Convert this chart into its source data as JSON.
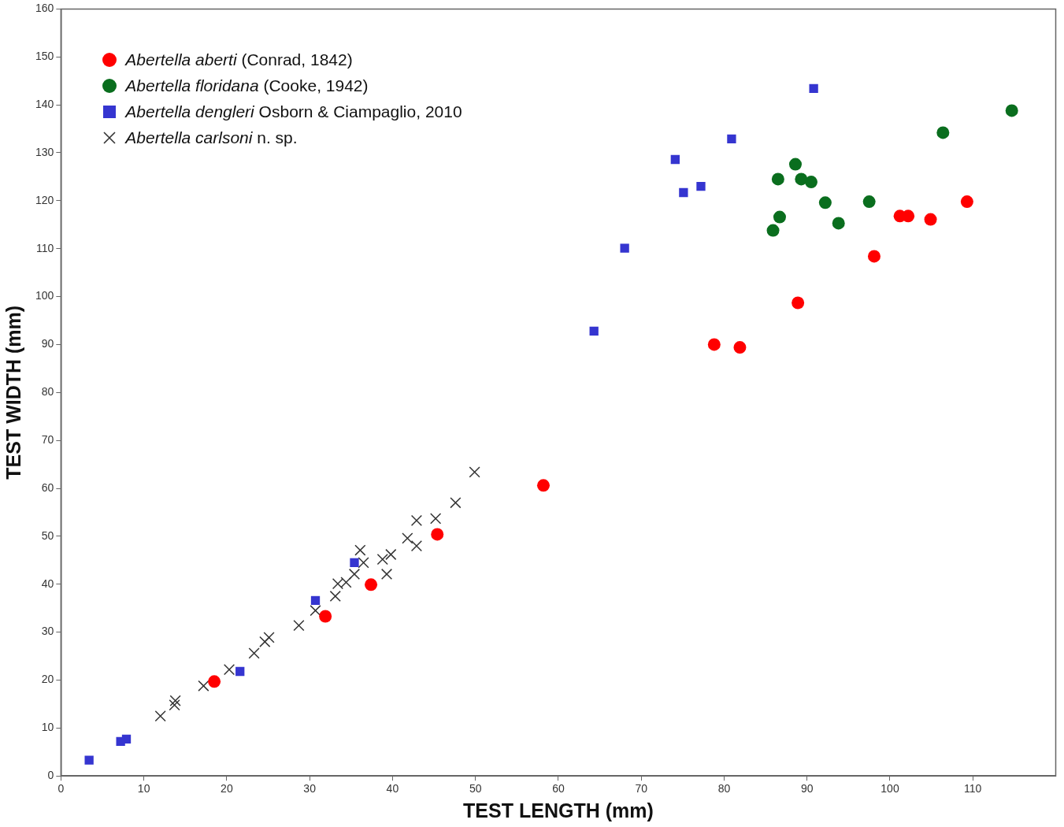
{
  "chart_data": {
    "type": "scatter",
    "xlabel": "TEST LENGTH (mm)",
    "ylabel": "TEST WIDTH (mm)",
    "xlim": [
      0,
      120
    ],
    "xticks": [
      0,
      10,
      20,
      30,
      40,
      50,
      60,
      70,
      80,
      90,
      100,
      110
    ],
    "ylim": [
      0,
      160
    ],
    "yticks": [
      0,
      10,
      20,
      30,
      40,
      50,
      60,
      70,
      80,
      90,
      100,
      110,
      120,
      130,
      140,
      150,
      160
    ],
    "grid": false,
    "legend": "top left",
    "series": [
      {
        "name": "Abertella aberti (Conrad, 1842)",
        "color": "#ff0000",
        "marker": "circle",
        "x": [
          18.5,
          31.9,
          37.4,
          45.4,
          58.2,
          78.8,
          81.9,
          88.9,
          98.1,
          101.2,
          102.2,
          104.9,
          109.3
        ],
        "values": [
          19.7,
          33.3,
          39.9,
          50.4,
          60.6,
          90.0,
          89.4,
          98.7,
          108.4,
          116.8,
          116.8,
          116.1,
          119.8
        ]
      },
      {
        "name": "Abertella floridana (Cooke, 1942)",
        "color": "#0a6e1e",
        "marker": "circle",
        "x": [
          114.7,
          106.4,
          88.6,
          86.5,
          89.3,
          90.5,
          92.2,
          97.5,
          93.8,
          86.7,
          85.9
        ],
        "values": [
          138.8,
          134.2,
          127.6,
          124.5,
          124.5,
          123.9,
          119.6,
          119.8,
          115.3,
          116.6,
          113.8
        ]
      },
      {
        "name": "Abertella dengleri Osborn & Ciampaglio, 2010",
        "color": "#3535d0",
        "marker": "square",
        "x": [
          90.8,
          80.9,
          74.1,
          77.2,
          75.1,
          68.0,
          64.3,
          35.4,
          30.7,
          21.6,
          7.9,
          7.2,
          3.4
        ],
        "values": [
          143.4,
          132.9,
          128.6,
          123.0,
          121.7,
          110.1,
          92.8,
          44.5,
          36.6,
          21.8,
          7.7,
          7.2,
          3.3
        ]
      },
      {
        "name": "Abertella carlsoni n. sp.",
        "color": "#333333",
        "marker": "cross",
        "x": [
          49.9,
          47.6,
          42.9,
          45.2,
          41.8,
          42.9,
          39.8,
          38.8,
          39.3,
          36.1,
          36.5,
          35.4,
          34.4,
          33.4,
          33.1,
          30.7,
          28.7,
          25.1,
          24.6,
          23.3,
          20.3,
          17.2,
          13.8,
          13.7,
          12.0
        ],
        "values": [
          63.4,
          57.0,
          53.3,
          53.7,
          49.6,
          48.0,
          46.2,
          45.2,
          42.1,
          47.1,
          44.5,
          42.1,
          40.4,
          40.1,
          37.5,
          34.5,
          31.4,
          28.9,
          28.0,
          25.6,
          22.2,
          18.8,
          15.7,
          14.8,
          12.5
        ]
      }
    ]
  }
}
